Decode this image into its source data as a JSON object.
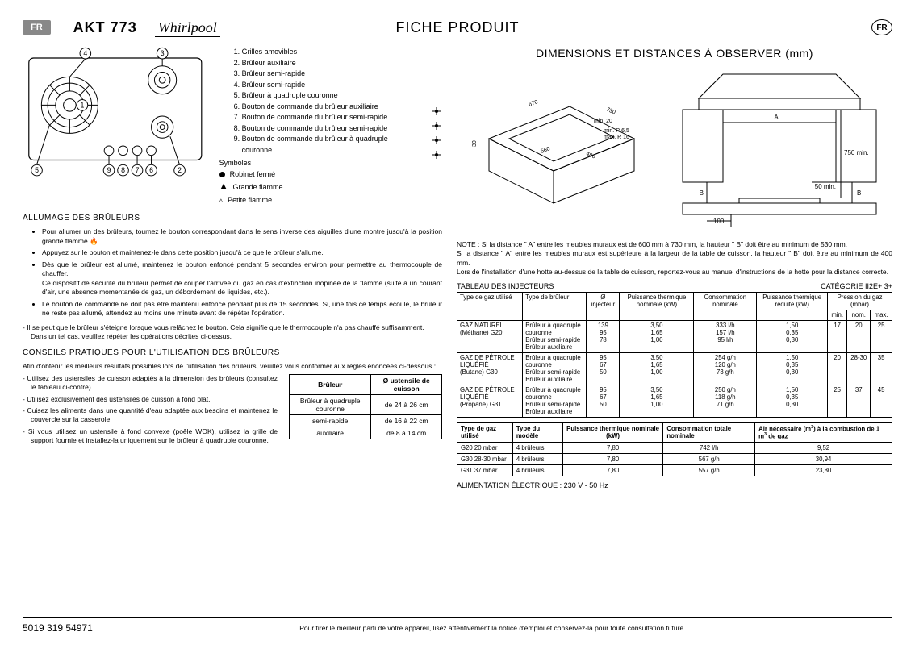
{
  "header": {
    "lang_tag": "FR",
    "model": "AKT 773",
    "brand": "Whirlpool",
    "title": "FICHE PRODUIT",
    "lang_circle": "FR"
  },
  "legend": {
    "items": [
      "Grilles amovibles",
      "Brûleur auxiliaire",
      "Brûleur semi-rapide",
      "Brûleur semi-rapide",
      "Brûleur à quadruple couronne",
      "Bouton de commande du brûleur auxiliaire",
      "Bouton de commande du brûleur semi-rapide",
      "Bouton de commande du brûleur semi-rapide",
      "Bouton de commande du brûleur à quadruple couronne"
    ],
    "symbols_title": "Symboles",
    "sym_closed": "Robinet fermé",
    "sym_big": "Grande flamme",
    "sym_small": "Petite flamme"
  },
  "ignition": {
    "title": "ALLUMAGE DES BRÛLEURS",
    "items": [
      "Pour allumer un des brûleurs, tournez le bouton correspondant dans le sens inverse des aiguilles d'une montre jusqu'à la position grande flamme 🔥 .",
      "Appuyez sur le bouton et maintenez-le dans cette position jusqu'à ce que le brûleur s'allume.",
      "Dès que le brûleur est allumé, maintenez le bouton enfoncé pendant 5 secondes environ pour permettre au thermocouple de chauffer.\nCe dispositif de sécurité du brûleur permet de couper l'arrivée du gaz en cas d'extinction inopinée de la flamme (suite à un courant d'air, une absence momentanée de gaz, un débordement de liquides, etc.).",
      "Le bouton de commande ne doit pas être maintenu enfoncé pendant plus de 15 secondes. Si, une fois ce temps écoulé, le brûleur ne reste pas allumé, attendez au moins une minute avant de répéter l'opération."
    ],
    "items2": [
      "Il se peut que le brûleur s'éteigne lorsque vous relâchez le bouton. Cela signifie que le thermocouple n'a pas chauffé suffisamment.\nDans un tel cas, veuillez répéter les opérations décrites ci-dessus."
    ]
  },
  "tips": {
    "title": "CONSEILS PRATIQUES POUR L'UTILISATION DES BRÛLEURS",
    "intro": "Afin d'obtenir les meilleurs résultats possibles lors de l'utilisation des brûleurs, veuillez vous conformer aux règles énoncées ci-dessous :",
    "items": [
      "Utilisez des ustensiles de cuisson adaptés à la dimension des brûleurs (consultez le tableau ci-contre).",
      "Utilisez exclusivement des ustensiles de cuisson à fond plat.",
      "Cuisez les aliments dans une quantité d'eau adaptée aux besoins et maintenez le couvercle sur la casserole.",
      "Si vous utilisez un ustensile à fond convexe (poêle WOK), utilisez la grille de support fournie et installez-la uniquement sur le brûleur à quadruple couronne."
    ]
  },
  "util_table": {
    "h1": "Brûleur",
    "h2": "Ø ustensile de cuisson",
    "rows": [
      [
        "Brûleur à quadruple couronne",
        "de 24 à 26 cm"
      ],
      [
        "semi-rapide",
        "de 16 à 22 cm"
      ],
      [
        "auxiliaire",
        "de 8 à 14 cm"
      ]
    ]
  },
  "dimensions": {
    "title": "DIMENSIONS ET DISTANCES À OBSERVER (mm)",
    "note": "NOTE : Si la distance \" A\" entre les meubles muraux est de 600 mm à 730 mm, la hauteur \" B\" doit être au minimum de 530 mm.\nSi la distance \" A\" entre les meubles muraux est supérieure à la largeur de la table de cuisson, la hauteur \" B\" doit être au minimum de 400 mm.\nLors de l'installation d'une hotte au-dessus de la table de cuisson, reportez-vous au manuel d'instructions de la hotte pour la distance correcte."
  },
  "inj": {
    "title": "TABLEAU DES INJECTEURS",
    "cat": "CATÉGORIE II2E+ 3+",
    "headers": [
      "Type de gaz utilisé",
      "Type de brûleur",
      "Ø injecteur",
      "Puissance thermique nominale (kW)",
      "Consommation nominale",
      "Puissance thermique réduite (kW)"
    ],
    "press_header": "Pression du gaz (mbar)",
    "press_sub": [
      "min.",
      "nom.",
      "max."
    ],
    "rows": [
      {
        "gas": "GAZ NATUREL\n(Méthane)          G20",
        "burners": [
          "Brûleur à quadruple couronne",
          "Brûleur semi-rapide",
          "Brûleur auxiliaire"
        ],
        "inj": [
          "139",
          "95",
          "78"
        ],
        "pow": [
          "3,50",
          "1,65",
          "1,00"
        ],
        "cons": [
          "333 l/h",
          "157 l/h",
          "95 l/h"
        ],
        "red": [
          "1,50",
          "0,35",
          "0,30"
        ],
        "p": [
          "17",
          "20",
          "25"
        ]
      },
      {
        "gas": "GAZ DE PÉTROLE LIQUÉFIÉ\n(Butane)             G30",
        "burners": [
          "Brûleur à quadruple couronne",
          "Brûleur semi-rapide",
          "Brûleur auxiliaire"
        ],
        "inj": [
          "95",
          "67",
          "50"
        ],
        "pow": [
          "3,50",
          "1,65",
          "1,00"
        ],
        "cons": [
          "254 g/h",
          "120 g/h",
          "73 g/h"
        ],
        "red": [
          "1,50",
          "0,35",
          "0,30"
        ],
        "p": [
          "20",
          "28-30",
          "35"
        ]
      },
      {
        "gas": "GAZ DE PÉTROLE LIQUÉFIÉ\n(Propane)           G31",
        "burners": [
          "Brûleur à quadruple couronne",
          "Brûleur semi-rapide",
          "Brûleur auxiliaire"
        ],
        "inj": [
          "95",
          "67",
          "50"
        ],
        "pow": [
          "3,50",
          "1,65",
          "1,00"
        ],
        "cons": [
          "250 g/h",
          "118 g/h",
          "71 g/h"
        ],
        "red": [
          "1,50",
          "0,35",
          "0,30"
        ],
        "p": [
          "25",
          "37",
          "45"
        ]
      }
    ]
  },
  "inj2": {
    "headers": [
      "Type de gaz utilisé",
      "Type du modèle",
      "Puissance thermique nominale (kW)",
      "Consommation totale nominale",
      "Air nécessaire (m³) à la combustion de 1 m³ de gaz"
    ],
    "rows": [
      [
        "G20 20 mbar",
        "4 brûleurs",
        "7,80",
        "742 l/h",
        "9,52"
      ],
      [
        "G30 28-30 mbar",
        "4 brûleurs",
        "7,80",
        "567 g/h",
        "30,94"
      ],
      [
        "G31 37 mbar",
        "4 brûleurs",
        "7,80",
        "557 g/h",
        "23,80"
      ]
    ]
  },
  "elec": "ALIMENTATION ÉLECTRIQUE : 230 V - 50 Hz",
  "footer": {
    "pn": "5019 319 54971",
    "text": "Pour tirer le meilleur parti de votre appareil, lisez attentivement la notice d'emploi et conservez-la pour toute consultation future."
  },
  "cooktop": {
    "callouts": [
      "1",
      "2",
      "3",
      "4",
      "5",
      "6",
      "7",
      "8",
      "9"
    ],
    "dim_labels": {
      "w": "670",
      "d": "560",
      "cutw": "560",
      "cutd": "480",
      "depth_min": "min. 20",
      "r_min": "min. R 6,5",
      "r_max": "max. R 16",
      "a": "A",
      "b": "B",
      "h750": "750 min.",
      "h50": "50 min.",
      "h100": "100"
    }
  }
}
